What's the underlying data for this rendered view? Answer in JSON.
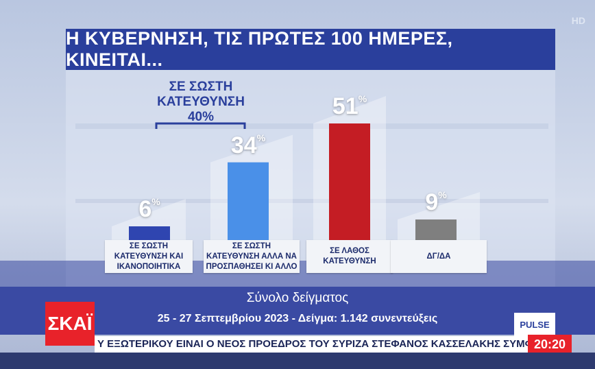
{
  "title": "Η ΚΥΒΕΡΝΗΣΗ, ΤΙΣ ΠΡΩΤΕΣ 100 ΗΜΕΡΕΣ, ΚΙΝΕΙΤΑΙ...",
  "hd_label": "HD",
  "group": {
    "line1": "ΣΕ ΣΩΣΤΗ",
    "line2": "ΚΑΤΕΥΘΥΝΣΗ",
    "value": "40%"
  },
  "footer": {
    "line1": "Σύνολο δείγματος",
    "line2": "25 - 27 Σεπτεμβρίου 2023 - Δείγμα: 1.142 συνεντεύξεις"
  },
  "channel_logo": "ΣΚΑΪ",
  "pollster": "PULSE",
  "ticker": "Υ ΕΞΩΤΕΡΙΚΟΥ ΕΙΝΑΙ Ο ΝΕΟΣ ΠΡΟΕΔΡΟΣ ΤΟΥ ΣΥΡΙΖΑ ΣΤΕΦΑΝΟΣ ΚΑΣΣΕΛΑΚΗΣ ΣΥΜΦΩΝΑ ΜΕ",
  "clock": "20:20",
  "colors": {
    "title_bg": "#2a3f9c",
    "bar_6": "#2f45b0",
    "bar_34": "#4a90e8",
    "bar_51": "#c41d24",
    "bar_9": "#7f7f7f",
    "accent_red": "#e8222a"
  },
  "chart_data": {
    "type": "bar",
    "title": "Η ΚΥΒΕΡΝΗΣΗ, ΤΙΣ ΠΡΩΤΕΣ 100 ΗΜΕΡΕΣ, ΚΙΝΕΙΤΑΙ...",
    "categories": [
      "ΣΕ ΣΩΣΤΗ ΚΑΤΕΥΘΥΝΣΗ ΚΑΙ ΙΚΑΝΟΠΟΙΗΤΙΚΑ",
      "ΣΕ ΣΩΣΤΗ ΚΑΤΕΥΘΥΝΣΗ ΑΛΛΑ ΝΑ ΠΡΟΣΠΑΘΗΣΕΙ ΚΙ ΑΛΛΟ",
      "ΣΕ ΛΑΘΟΣ ΚΑΤΕΥΘΥΝΣΗ",
      "ΔΓ/ΔΑ"
    ],
    "category_lines": [
      [
        "ΣΕ ΣΩΣΤΗ",
        "ΚΑΤΕΥΘΥΝΣΗ ΚΑΙ",
        "ΙΚΑΝΟΠΟΙΗΤΙΚΑ"
      ],
      [
        "ΣΕ ΣΩΣΤΗ",
        "ΚΑΤΕΥΘΥΝΣΗ ΑΛΛΑ ΝΑ",
        "ΠΡΟΣΠΑΘΗΣΕΙ ΚΙ ΑΛΛΟ"
      ],
      [
        "ΣΕ ΛΑΘΟΣ",
        "ΚΑΤΕΥΘΥΝΣΗ"
      ],
      [
        "ΔΓ/ΔΑ"
      ]
    ],
    "values": [
      6,
      34,
      51,
      9
    ],
    "value_labels": [
      "6",
      "34",
      "51",
      "9"
    ],
    "unit": "%",
    "ylim": [
      0,
      55
    ],
    "grid": false
  }
}
